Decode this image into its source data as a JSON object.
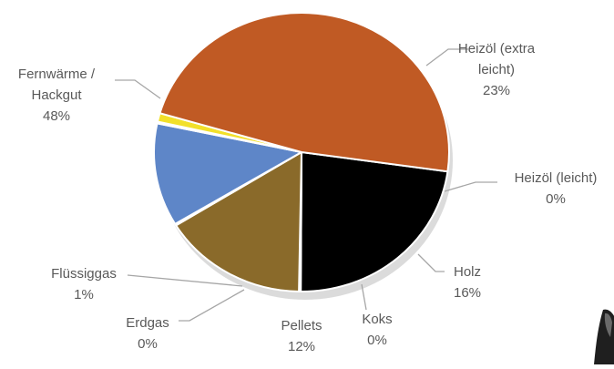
{
  "chart_data": {
    "type": "pie",
    "title": "",
    "slices": [
      {
        "label": [
          "Heizöl (extra",
          "leicht)"
        ],
        "pct_text": "23%",
        "value": 23,
        "color": "#000000"
      },
      {
        "label": [
          "Heizöl (leicht)"
        ],
        "pct_text": "0%",
        "value": 0.2,
        "color": "#4a3a1a"
      },
      {
        "label": [
          "Holz"
        ],
        "pct_text": "16%",
        "value": 16,
        "color": "#8a6a2a"
      },
      {
        "label": [
          "Koks"
        ],
        "pct_text": "0%",
        "value": 0.2,
        "color": "#5a5a5a"
      },
      {
        "label": [
          "Pellets"
        ],
        "pct_text": "12%",
        "value": 12,
        "color": "#5e86c8"
      },
      {
        "label": [
          "Erdgas"
        ],
        "pct_text": "0%",
        "value": 0.2,
        "color": "#4472c4"
      },
      {
        "label": [
          "Flüssiggas"
        ],
        "pct_text": "1%",
        "value": 1,
        "color": "#f2e02a"
      },
      {
        "label": [
          "Fernwärme /",
          "Hackgut"
        ],
        "pct_text": "48%",
        "value": 48,
        "color": "#c05a24"
      }
    ],
    "legend": "none",
    "data_labels": "outside with leader lines"
  }
}
